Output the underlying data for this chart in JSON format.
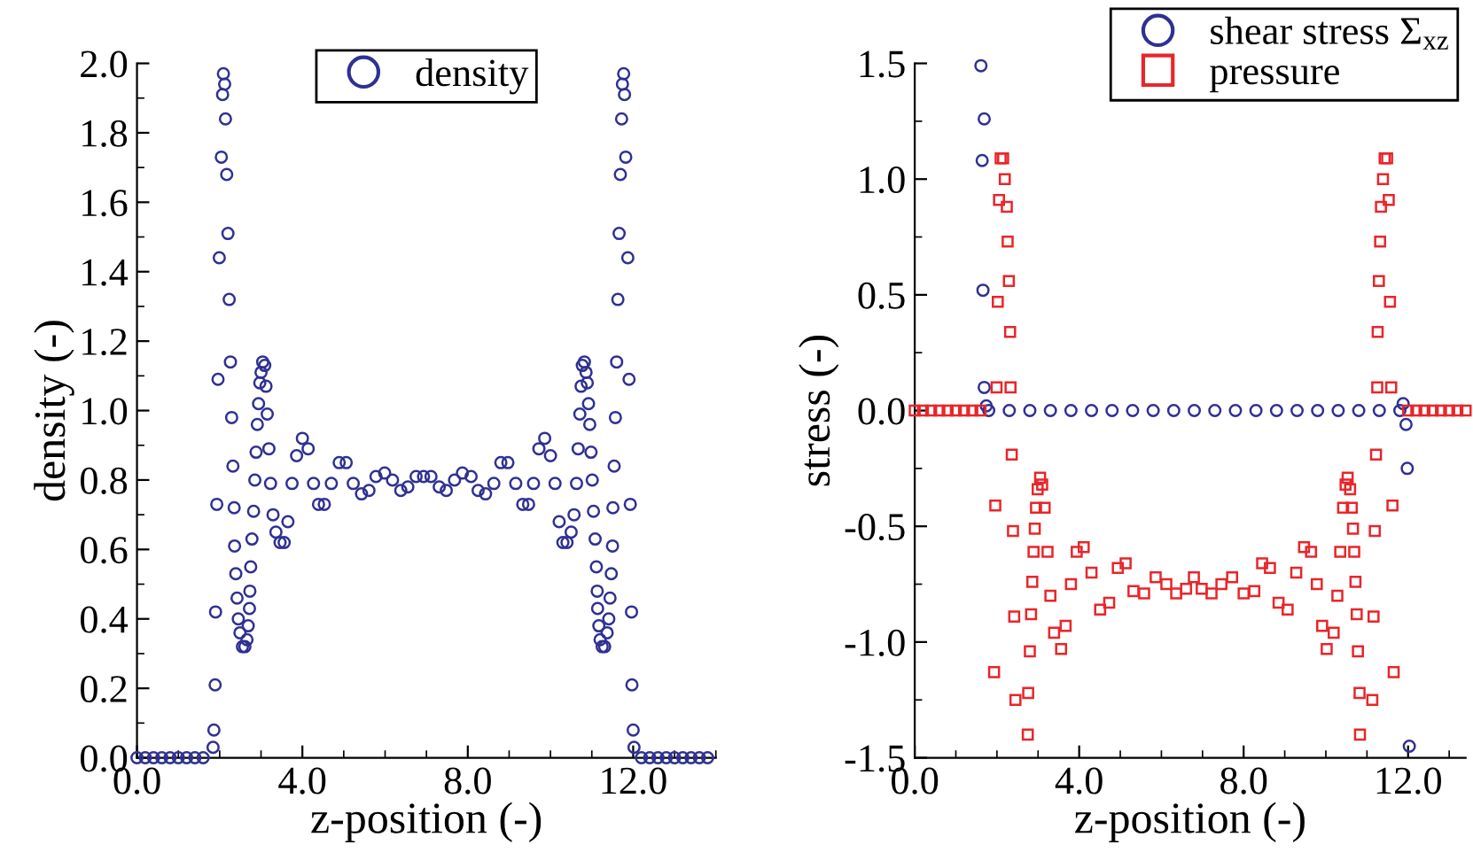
{
  "chart_data": [
    {
      "type": "scatter",
      "xlabel": "z-position (-)",
      "ylabel": "density (-)",
      "xlim": [
        0,
        14
      ],
      "xticks": [
        {
          "value": 0,
          "label": "0.0"
        },
        {
          "value": 4,
          "label": "4.0"
        },
        {
          "value": 8,
          "label": "8.0"
        },
        {
          "value": 12,
          "label": "12.0"
        }
      ],
      "ylim": [
        0,
        2.0
      ],
      "yticks": [
        {
          "value": 0,
          "label": "0.0"
        },
        0.2,
        0.4,
        0.6,
        0.8,
        {
          "value": 1,
          "label": "1.0"
        },
        1.2,
        1.4,
        1.6,
        1.8,
        {
          "value": 2,
          "label": "2.0"
        }
      ],
      "legend": "top",
      "series": [
        {
          "name": "density",
          "color": "#2e3192",
          "marker": "circle",
          "x": [
            0,
            0.2,
            0.4,
            0.6,
            0.8,
            1.0,
            1.2,
            1.4,
            1.6,
            1.84,
            1.86,
            1.89,
            1.9,
            1.93,
            1.96,
            1.99,
            2.04,
            2.07,
            2.09,
            2.12,
            2.14,
            2.17,
            2.2,
            2.23,
            2.26,
            2.29,
            2.32,
            2.35,
            2.36,
            2.39,
            2.42,
            2.45,
            2.49,
            2.55,
            2.61,
            2.66,
            2.69,
            2.72,
            2.73,
            2.75,
            2.78,
            2.82,
            2.85,
            2.88,
            2.91,
            2.94,
            2.97,
            3.0,
            3.04,
            3.09,
            3.12,
            3.15,
            3.19,
            3.23,
            3.29,
            3.36,
            3.46,
            3.56,
            3.65,
            3.75,
            3.86,
            4.0,
            4.14,
            4.27,
            4.39,
            4.53,
            4.7,
            4.89,
            5.06,
            5.23,
            5.43,
            5.61,
            5.78,
            5.99,
            6.18,
            6.38,
            6.55,
            6.75,
            6.93,
            7.11,
            7.31,
            7.48,
            7.68,
            7.87,
            8.08,
            8.25,
            8.43,
            8.63,
            8.8,
            8.97,
            9.16,
            9.33,
            9.47,
            9.59,
            9.72,
            9.86,
            10.0,
            10.11,
            10.21,
            10.3,
            10.4,
            10.5,
            10.57,
            10.63,
            10.67,
            10.71,
            10.74,
            10.77,
            10.82,
            10.86,
            10.89,
            10.92,
            10.95,
            10.98,
            11.01,
            11.04,
            11.08,
            11.11,
            11.13,
            11.14,
            11.17,
            11.2,
            11.25,
            11.31,
            11.37,
            11.41,
            11.44,
            11.47,
            11.5,
            11.51,
            11.54,
            11.57,
            11.6,
            11.63,
            11.66,
            11.69,
            11.72,
            11.74,
            11.77,
            11.79,
            11.82,
            11.87,
            11.9,
            11.93,
            11.96,
            11.97,
            12.0,
            12.02,
            12.2,
            12.4,
            12.6,
            12.8,
            13.0,
            13.2,
            13.4,
            13.6,
            13.8
          ],
          "values": [
            0,
            0,
            0,
            0,
            0,
            0,
            0,
            0,
            0,
            0.03,
            0.08,
            0.21,
            0.42,
            0.73,
            1.09,
            1.44,
            1.73,
            1.91,
            1.97,
            1.94,
            1.84,
            1.68,
            1.51,
            1.32,
            1.14,
            0.98,
            0.84,
            0.72,
            0.61,
            0.53,
            0.46,
            0.4,
            0.36,
            0.32,
            0.32,
            0.34,
            0.38,
            0.43,
            0.48,
            0.55,
            0.63,
            0.71,
            0.8,
            0.88,
            0.96,
            1.02,
            1.08,
            1.11,
            1.14,
            1.13,
            1.07,
            0.99,
            0.89,
            0.79,
            0.7,
            0.65,
            0.62,
            0.62,
            0.68,
            0.79,
            0.87,
            0.92,
            0.89,
            0.79,
            0.73,
            0.73,
            0.79,
            0.85,
            0.85,
            0.79,
            0.76,
            0.77,
            0.81,
            0.82,
            0.8,
            0.77,
            0.78,
            0.81,
            0.81,
            0.81,
            0.78,
            0.77,
            0.8,
            0.82,
            0.81,
            0.77,
            0.76,
            0.79,
            0.85,
            0.85,
            0.79,
            0.73,
            0.73,
            0.79,
            0.89,
            0.92,
            0.87,
            0.79,
            0.68,
            0.62,
            0.62,
            0.65,
            0.7,
            0.79,
            0.89,
            0.99,
            1.07,
            1.13,
            1.14,
            1.11,
            1.08,
            1.02,
            0.96,
            0.88,
            0.8,
            0.71,
            0.63,
            0.55,
            0.48,
            0.43,
            0.38,
            0.34,
            0.32,
            0.32,
            0.36,
            0.4,
            0.46,
            0.53,
            0.61,
            0.72,
            0.84,
            0.98,
            1.14,
            1.32,
            1.51,
            1.68,
            1.84,
            1.94,
            1.97,
            1.91,
            1.73,
            1.44,
            1.09,
            0.73,
            0.42,
            0.21,
            0.08,
            0.03,
            0,
            0,
            0,
            0,
            0,
            0,
            0,
            0,
            0
          ]
        }
      ]
    },
    {
      "type": "scatter",
      "xlabel": "z-position (-)",
      "ylabel": "stress (-)",
      "xlim": [
        0,
        13.4
      ],
      "xticks": [
        {
          "value": 0,
          "label": "0.0"
        },
        {
          "value": 4,
          "label": "4.0"
        },
        {
          "value": 8,
          "label": "8.0"
        },
        {
          "value": 12,
          "label": "12.0"
        }
      ],
      "ylim": [
        -1.5,
        1.5
      ],
      "yticks": [
        -1.5,
        {
          "value": -1,
          "label": "-1.0"
        },
        -0.5,
        {
          "value": 0,
          "label": "0.0"
        },
        0.5,
        {
          "value": 1,
          "label": "1.0"
        },
        1.5
      ],
      "legend": "top right",
      "series": [
        {
          "name": "shear stress Σ$_{xz}$",
          "color": "#2e3192",
          "marker": "circle",
          "x": [
            1.61,
            1.64,
            1.66,
            1.69,
            1.69,
            1.74,
            1.8,
            2.3,
            2.8,
            3.3,
            3.8,
            4.3,
            4.8,
            5.3,
            5.8,
            6.3,
            6.8,
            7.3,
            7.8,
            8.3,
            8.8,
            9.3,
            9.8,
            10.3,
            10.8,
            11.3,
            11.8,
            11.88,
            11.95,
            11.98,
            12.03
          ],
          "values": [
            1.49,
            1.08,
            0.52,
            1.26,
            0.1,
            0.02,
            0,
            0,
            0,
            0,
            0,
            0,
            0,
            0,
            0,
            0,
            0,
            0,
            0,
            0,
            0,
            0,
            0,
            0,
            0,
            0,
            0,
            0.03,
            -0.06,
            -0.25,
            -1.45
          ]
        },
        {
          "name": "pressure",
          "color": "#e8262a",
          "marker": "square",
          "x": [
            0,
            0.2,
            0.4,
            0.6,
            0.8,
            1.0,
            1.2,
            1.4,
            1.6,
            1.93,
            1.96,
            1.99,
            2.02,
            2.05,
            2.09,
            2.15,
            2.19,
            2.24,
            2.26,
            2.29,
            2.32,
            2.33,
            2.36,
            2.39,
            2.42,
            2.45,
            2.75,
            2.76,
            2.8,
            2.83,
            2.86,
            2.89,
            2.92,
            2.95,
            2.99,
            3.05,
            3.1,
            3.16,
            3.23,
            3.3,
            3.39,
            3.56,
            3.67,
            3.8,
            3.94,
            4.11,
            4.3,
            4.51,
            4.73,
            4.94,
            5.13,
            5.32,
            5.58,
            5.86,
            6.12,
            6.36,
            6.6,
            6.79,
            6.98,
            7.22,
            7.46,
            7.72,
            8.0,
            8.26,
            8.45,
            8.64,
            8.85,
            9.07,
            9.28,
            9.47,
            9.64,
            9.78,
            9.91,
            10.02,
            10.19,
            10.28,
            10.35,
            10.42,
            10.48,
            10.53,
            10.59,
            10.63,
            10.66,
            10.69,
            10.72,
            10.75,
            10.78,
            10.82,
            10.83,
            11.13,
            11.16,
            11.19,
            11.22,
            11.25,
            11.26,
            11.29,
            11.32,
            11.34,
            11.39,
            11.43,
            11.49,
            11.53,
            11.56,
            11.59,
            11.62,
            11.65,
            12.0,
            12.2,
            12.4,
            12.6,
            12.8,
            13.0,
            13.2,
            13.4
          ],
          "values": [
            0,
            0,
            0,
            0,
            0,
            0,
            0,
            0,
            0,
            -1.13,
            -0.41,
            0.1,
            0.47,
            0.91,
            1.09,
            1.09,
            1.0,
            0.88,
            0.73,
            0.56,
            0.34,
            0.1,
            -0.19,
            -0.52,
            -0.89,
            -1.25,
            -1.4,
            -1.22,
            -1.04,
            -0.88,
            -0.74,
            -0.61,
            -0.51,
            -0.42,
            -0.34,
            -0.29,
            -0.32,
            -0.42,
            -0.61,
            -0.8,
            -0.96,
            -1.03,
            -0.93,
            -0.75,
            -0.61,
            -0.59,
            -0.7,
            -0.86,
            -0.83,
            -0.68,
            -0.66,
            -0.78,
            -0.79,
            -0.72,
            -0.75,
            -0.79,
            -0.77,
            -0.72,
            -0.77,
            -0.79,
            -0.75,
            -0.72,
            -0.79,
            -0.78,
            -0.66,
            -0.68,
            -0.83,
            -0.86,
            -0.7,
            -0.59,
            -0.61,
            -0.75,
            -0.93,
            -1.03,
            -0.96,
            -0.8,
            -0.61,
            -0.42,
            -0.32,
            -0.29,
            -0.34,
            -0.42,
            -0.51,
            -0.61,
            -0.74,
            -0.88,
            -1.04,
            -1.22,
            -1.4,
            -1.25,
            -0.89,
            -0.52,
            -0.19,
            0.1,
            0.34,
            0.56,
            0.73,
            0.88,
            1.0,
            1.09,
            1.09,
            0.91,
            0.47,
            0.1,
            -0.41,
            -1.13,
            0,
            0,
            0,
            0,
            0,
            0,
            0,
            0
          ]
        }
      ]
    }
  ]
}
